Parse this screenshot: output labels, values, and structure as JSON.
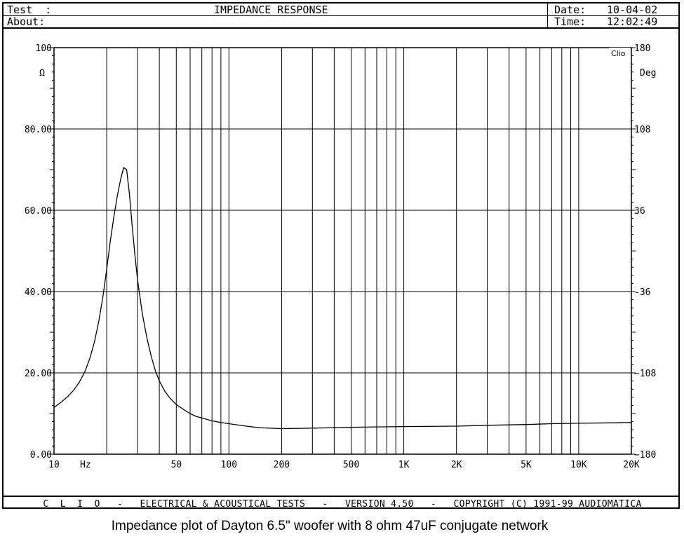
{
  "header": {
    "test_label": "Test  :",
    "title": "IMPEDANCE RESPONSE",
    "about_label": "About:",
    "date_label": "Date:",
    "date_value": "10-04-02",
    "time_label": "Time:",
    "time_value": "12:02:49"
  },
  "footer": {
    "text": "C  L  I  O   -   ELECTRICAL & ACOUSTICAL TESTS   -   VERSION 4.50   -   COPYRIGHT (C) 1991-99 AUDIOMATICA"
  },
  "caption": "Impedance plot of Dayton 6.5\" woofer with 8 ohm 47uF conjugate network",
  "chart_data": {
    "type": "line",
    "title": "IMPEDANCE RESPONSE",
    "xlabel": "Hz",
    "ylabel": "Ω",
    "y2label": "Deg",
    "badge": "Clio",
    "xscale": "log",
    "xlim": [
      10,
      20000
    ],
    "ylim": [
      0,
      100
    ],
    "y2lim": [
      -180,
      180
    ],
    "grid": true,
    "x_ticks": [
      {
        "value": 10,
        "label": "10"
      },
      {
        "value": 50,
        "label": "50"
      },
      {
        "value": 100,
        "label": "100"
      },
      {
        "value": 200,
        "label": "200"
      },
      {
        "value": 500,
        "label": "500"
      },
      {
        "value": 1000,
        "label": "1K"
      },
      {
        "value": 2000,
        "label": "2K"
      },
      {
        "value": 5000,
        "label": "5K"
      },
      {
        "value": 10000,
        "label": "10K"
      },
      {
        "value": 20000,
        "label": "20K"
      }
    ],
    "y_ticks": [
      {
        "value": 0,
        "label": "0.00"
      },
      {
        "value": 20,
        "label": "20.00"
      },
      {
        "value": 40,
        "label": "40.00"
      },
      {
        "value": 60,
        "label": "60.00"
      },
      {
        "value": 80,
        "label": "80.00"
      },
      {
        "value": 100,
        "label": "100"
      }
    ],
    "y2_ticks": [
      {
        "value": -180,
        "label": "−180"
      },
      {
        "value": -108,
        "label": "−108"
      },
      {
        "value": -36,
        "label": "-36"
      },
      {
        "value": 36,
        "label": "36"
      },
      {
        "value": 108,
        "label": "108"
      },
      {
        "value": 180,
        "label": "180"
      }
    ],
    "series": [
      {
        "x": [
          10,
          11,
          12,
          13,
          14,
          15,
          16,
          17,
          18,
          19,
          20,
          21,
          22,
          23,
          24,
          25,
          26,
          27,
          28,
          29,
          30,
          32,
          34,
          36,
          38,
          40,
          43,
          46,
          50,
          55,
          60,
          65,
          70,
          80,
          90,
          100,
          120,
          150,
          200,
          300,
          500,
          700,
          1000,
          2000,
          3000,
          5000,
          7000,
          10000,
          15000,
          20000
        ],
        "values": [
          11.5,
          12.8,
          14.2,
          15.8,
          17.8,
          20.3,
          23.5,
          27.5,
          32.5,
          38.5,
          45.5,
          52.5,
          58.5,
          63.5,
          67.5,
          70.5,
          70.0,
          64.0,
          56.0,
          49.0,
          43.0,
          34.5,
          28.5,
          24.0,
          20.5,
          18.0,
          15.5,
          13.8,
          12.2,
          11.0,
          10.0,
          9.3,
          8.9,
          8.2,
          7.8,
          7.5,
          7.0,
          6.5,
          6.3,
          6.4,
          6.6,
          6.7,
          6.8,
          6.9,
          7.1,
          7.3,
          7.5,
          7.6,
          7.7,
          7.8
        ]
      }
    ]
  }
}
